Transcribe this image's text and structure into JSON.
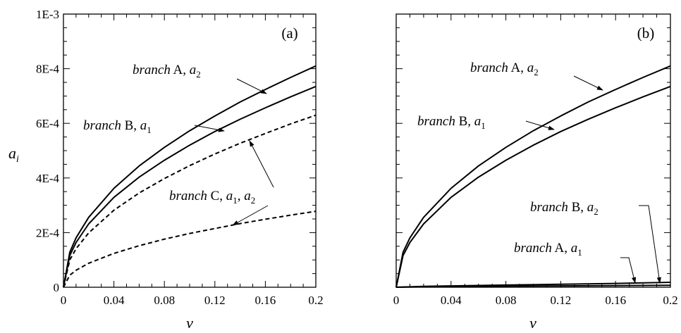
{
  "chart_data": [
    {
      "type": "line",
      "panel_label": "(a)",
      "xlabel": "ν",
      "ylabel": "a",
      "ylabel_sub": "i",
      "xlim": [
        0,
        0.2
      ],
      "ylim": [
        0,
        0.001
      ],
      "x_ticks": [
        0,
        0.04,
        0.08,
        0.12,
        0.16,
        0.2
      ],
      "x_tick_labels": [
        "0",
        "0.04",
        "0.08",
        "0.12",
        "0.16",
        "0.2"
      ],
      "y_ticks": [
        0,
        0.0002,
        0.0004,
        0.0006,
        0.0008,
        0.001
      ],
      "y_tick_labels": [
        "0",
        "2E-4",
        "4E-4",
        "6E-4",
        "8E-4",
        "1E-3"
      ],
      "grid": false,
      "series": [
        {
          "name": "branch A, a2",
          "style": "solid",
          "color": "#000000",
          "x": [
            0,
            0.005,
            0.01,
            0.02,
            0.04,
            0.06,
            0.08,
            0.1,
            0.12,
            0.14,
            0.16,
            0.18,
            0.2
          ],
          "y": [
            0,
            0.000128,
            0.000181,
            0.000256,
            0.000362,
            0.000444,
            0.000512,
            0.000573,
            0.000627,
            0.000678,
            0.000724,
            0.000768,
            0.00081
          ]
        },
        {
          "name": "branch B, a1",
          "style": "solid",
          "color": "#000000",
          "x": [
            0,
            0.005,
            0.01,
            0.02,
            0.04,
            0.06,
            0.08,
            0.1,
            0.12,
            0.14,
            0.16,
            0.18,
            0.2
          ],
          "y": [
            0,
            0.000116,
            0.000164,
            0.000232,
            0.000329,
            0.000403,
            0.000465,
            0.00052,
            0.00057,
            0.000615,
            0.000657,
            0.000697,
            0.000735
          ]
        },
        {
          "name": "branch C, a1",
          "style": "dashed",
          "color": "#000000",
          "x": [
            0,
            0.005,
            0.01,
            0.02,
            0.04,
            0.06,
            0.08,
            0.1,
            0.12,
            0.14,
            0.16,
            0.18,
            0.2
          ],
          "y": [
            0,
            0.0001,
            0.000141,
            0.000199,
            0.000282,
            0.000345,
            0.000398,
            0.000445,
            0.000488,
            0.000527,
            0.000563,
            0.000598,
            0.00063
          ]
        },
        {
          "name": "branch C, a2",
          "style": "dashed",
          "color": "#000000",
          "x": [
            0,
            0.005,
            0.01,
            0.02,
            0.04,
            0.06,
            0.08,
            0.1,
            0.12,
            0.14,
            0.16,
            0.18,
            0.2
          ],
          "y": [
            0,
            4.4e-05,
            6.2e-05,
            8.8e-05,
            0.000124,
            0.000152,
            0.000176,
            0.000197,
            0.000215,
            0.000233,
            0.000249,
            0.000264,
            0.000278
          ]
        }
      ],
      "annotations": [
        {
          "it": "branch",
          "rest": " A, ",
          "var": "a",
          "sub": "2"
        },
        {
          "it": "branch",
          "rest": " B, ",
          "var": "a",
          "sub": "1"
        },
        {
          "it": "branch",
          "rest": " C, ",
          "var": "a",
          "sub": "1",
          "sep": ",  ",
          "var2": "a",
          "sub2": "2"
        }
      ]
    },
    {
      "type": "line",
      "panel_label": "(b)",
      "xlabel": "ν",
      "xlim": [
        0,
        0.2
      ],
      "ylim": [
        0,
        0.001
      ],
      "x_ticks": [
        0,
        0.04,
        0.08,
        0.12,
        0.16,
        0.2
      ],
      "x_tick_labels": [
        "0",
        "0.04",
        "0.08",
        "0.12",
        "0.16",
        "0.2"
      ],
      "y_ticks": [
        0,
        0.0002,
        0.0004,
        0.0006,
        0.0008,
        0.001
      ],
      "grid": false,
      "series": [
        {
          "name": "branch A, a2",
          "style": "solid",
          "color": "#000000",
          "x": [
            0,
            0.005,
            0.01,
            0.02,
            0.04,
            0.06,
            0.08,
            0.1,
            0.12,
            0.14,
            0.16,
            0.18,
            0.2
          ],
          "y": [
            0,
            0.000128,
            0.000181,
            0.000256,
            0.000362,
            0.000444,
            0.000512,
            0.000573,
            0.000627,
            0.000678,
            0.000724,
            0.000768,
            0.00081
          ]
        },
        {
          "name": "branch B, a1",
          "style": "solid",
          "color": "#000000",
          "x": [
            0,
            0.005,
            0.01,
            0.02,
            0.04,
            0.06,
            0.08,
            0.1,
            0.12,
            0.14,
            0.16,
            0.18,
            0.2
          ],
          "y": [
            0,
            0.000116,
            0.000164,
            0.000232,
            0.000329,
            0.000403,
            0.000465,
            0.00052,
            0.00057,
            0.000615,
            0.000657,
            0.000697,
            0.000735
          ]
        },
        {
          "name": "branch B, a2",
          "style": "solid",
          "color": "#000000",
          "x": [
            0,
            0.02,
            0.04,
            0.08,
            0.12,
            0.16,
            0.2
          ],
          "y": [
            0,
            3e-06,
            5e-06,
            8e-06,
            1.1e-05,
            1.4e-05,
            1.8e-05
          ]
        },
        {
          "name": "branch A, a1",
          "style": "solid",
          "color": "#000000",
          "x": [
            0,
            0.02,
            0.04,
            0.08,
            0.12,
            0.16,
            0.2
          ],
          "y": [
            0,
            1.5e-06,
            3e-06,
            4e-06,
            5e-06,
            6e-06,
            7e-06
          ]
        }
      ],
      "annotations": [
        {
          "it": "branch",
          "rest": " A, ",
          "var": "a",
          "sub": "2"
        },
        {
          "it": "branch",
          "rest": " B, ",
          "var": "a",
          "sub": "1"
        },
        {
          "it": "branch",
          "rest": " B, ",
          "var": "a",
          "sub": "2"
        },
        {
          "it": "branch",
          "rest": " A, ",
          "var": "a",
          "sub": "1"
        }
      ]
    }
  ]
}
